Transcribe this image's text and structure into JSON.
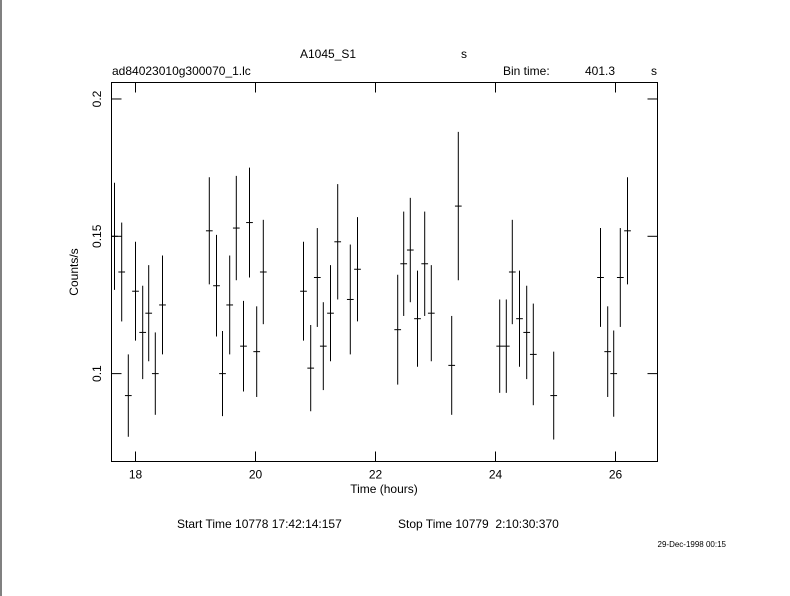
{
  "chart_data": {
    "type": "errorbar",
    "title": "A1045_S1",
    "title_unit": "s",
    "subtitle": "ad84023010g300070_1.lc",
    "bin_time_label": "Bin time:",
    "bin_time": 401.3,
    "bin_time_unit": "s",
    "xlabel": "Time (hours)",
    "ylabel": "Counts/s",
    "start_time": "Start Time 10778 17:42:14:157",
    "stop_time": "Stop Time 10779  2:10:30:370",
    "timestamp": "29-Dec-1998 00:15",
    "color": "#000000",
    "x": [
      17.65,
      17.77,
      17.88,
      18.0,
      18.12,
      18.22,
      18.33,
      18.45,
      19.23,
      19.35,
      19.45,
      19.57,
      19.68,
      19.8,
      19.9,
      20.02,
      20.13,
      20.8,
      20.92,
      21.03,
      21.13,
      21.25,
      21.37,
      21.58,
      21.7,
      22.37,
      22.47,
      22.58,
      22.7,
      22.82,
      22.93,
      23.27,
      23.38,
      24.07,
      24.18,
      24.28,
      24.4,
      24.52,
      24.63,
      24.97,
      25.75,
      25.87,
      25.97,
      26.08,
      26.2
    ],
    "y": [
      0.15,
      0.137,
      0.092,
      0.13,
      0.115,
      0.122,
      0.1,
      0.125,
      0.152,
      0.132,
      0.1,
      0.125,
      0.153,
      0.11,
      0.155,
      0.108,
      0.137,
      0.13,
      0.102,
      0.135,
      0.11,
      0.122,
      0.148,
      0.127,
      0.138,
      0.116,
      0.14,
      0.145,
      0.12,
      0.14,
      0.122,
      0.103,
      0.161,
      0.11,
      0.11,
      0.137,
      0.12,
      0.115,
      0.107,
      0.092,
      0.135,
      0.108,
      0.1,
      0.135,
      0.152
    ],
    "yerr": [
      0.0195,
      0.018,
      0.015,
      0.018,
      0.017,
      0.0175,
      0.015,
      0.018,
      0.0195,
      0.0185,
      0.0155,
      0.018,
      0.019,
      0.0165,
      0.02,
      0.0165,
      0.019,
      0.018,
      0.0157,
      0.018,
      0.016,
      0.0175,
      0.021,
      0.02,
      0.019,
      0.02,
      0.019,
      0.019,
      0.0175,
      0.019,
      0.0175,
      0.018,
      0.027,
      0.017,
      0.017,
      0.019,
      0.0175,
      0.017,
      0.0185,
      0.016,
      0.018,
      0.0165,
      0.0157,
      0.018,
      0.0195
    ],
    "xerr": 0.056,
    "xlim": [
      17.6,
      26.7
    ],
    "ylim": [
      0.068,
      0.206
    ],
    "xticks": [
      18,
      20,
      22,
      24,
      26
    ],
    "yticks": [
      0.1,
      0.15,
      0.2
    ]
  }
}
